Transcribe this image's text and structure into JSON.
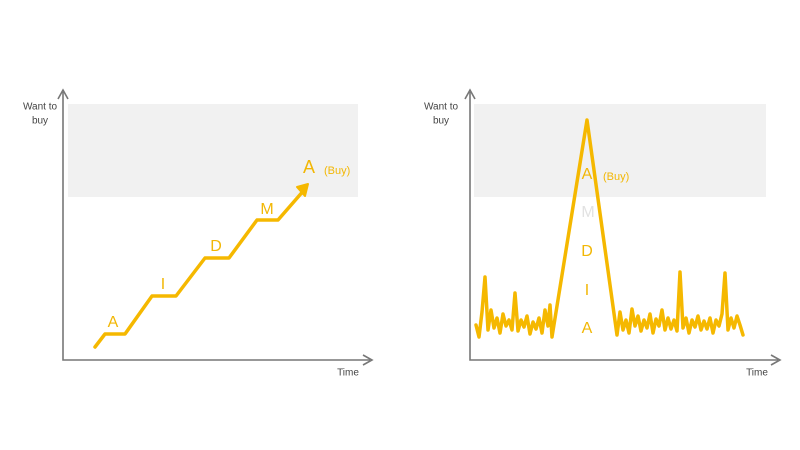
{
  "left": {
    "y_label_lines": [
      "Want to",
      "buy"
    ],
    "x_label": "Time",
    "stages": [
      "A",
      "I",
      "D",
      "M",
      "A"
    ],
    "buy_label": "(Buy)"
  },
  "right": {
    "y_label_lines": [
      "Want to",
      "buy"
    ],
    "x_label": "Time",
    "stages": [
      "A",
      "M",
      "D",
      "I",
      "A"
    ],
    "buy_label": "(Buy)"
  }
}
